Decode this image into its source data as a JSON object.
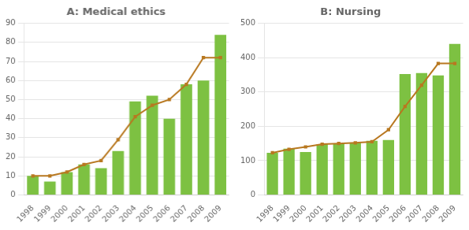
{
  "chart_data": [
    {
      "type": "bar",
      "title": "A: Medical ethics",
      "categories": [
        "1998",
        "1999",
        "2000",
        "2001",
        "2002",
        "2003",
        "2004",
        "2005",
        "2006",
        "2007",
        "2008",
        "2009"
      ],
      "series": [
        {
          "type": "bar",
          "color": "#7dc142",
          "values": [
            10,
            7,
            12,
            16,
            14,
            23,
            49,
            52,
            40,
            58,
            60,
            84
          ]
        },
        {
          "type": "line",
          "color": "#b87820",
          "marker": "square",
          "line_style": "solid",
          "values": [
            10,
            10,
            12,
            16,
            18,
            29,
            41,
            47,
            50,
            58,
            72,
            72
          ]
        }
      ],
      "ylim": [
        0,
        90
      ],
      "yticks": [
        0,
        10,
        20,
        30,
        40,
        50,
        60,
        70,
        80,
        90
      ],
      "grid": true
    },
    {
      "type": "bar",
      "title": "B: Nursing",
      "categories": [
        "1998",
        "1999",
        "2000",
        "2001",
        "2002",
        "2003",
        "2004",
        "2005",
        "2006",
        "2007",
        "2008",
        "2009"
      ],
      "series": [
        {
          "type": "bar",
          "color": "#7dc142",
          "values": [
            123,
            135,
            125,
            148,
            150,
            152,
            158,
            160,
            352,
            355,
            348,
            440
          ]
        },
        {
          "type": "line",
          "color": "#b87820",
          "marker": "square",
          "line_style": "solid",
          "values": [
            123,
            133,
            140,
            148,
            150,
            152,
            155,
            190,
            258,
            320,
            383,
            383
          ]
        }
      ],
      "ylim": [
        0,
        500
      ],
      "yticks": [
        0,
        100,
        200,
        300,
        400,
        500
      ],
      "grid": true
    }
  ]
}
